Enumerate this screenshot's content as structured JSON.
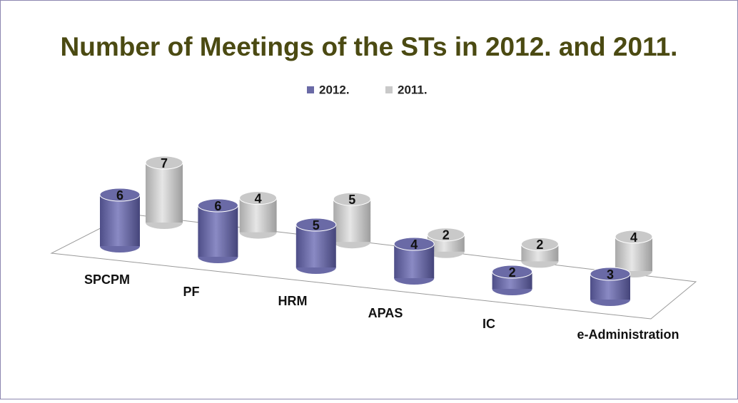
{
  "chart_data": {
    "type": "bar",
    "title": "Number of Meetings of the STs in 2012. and 2011.",
    "categories": [
      "SPCPM",
      "PF",
      "HRM",
      "APAS",
      "IC",
      "e-Administration"
    ],
    "series": [
      {
        "name": "2012.",
        "color": "#6a6aa6",
        "values": [
          6,
          6,
          5,
          4,
          2,
          3
        ]
      },
      {
        "name": "2011.",
        "color": "#c9c9c9",
        "values": [
          7,
          4,
          5,
          2,
          2,
          4
        ]
      }
    ],
    "legend": "top"
  }
}
